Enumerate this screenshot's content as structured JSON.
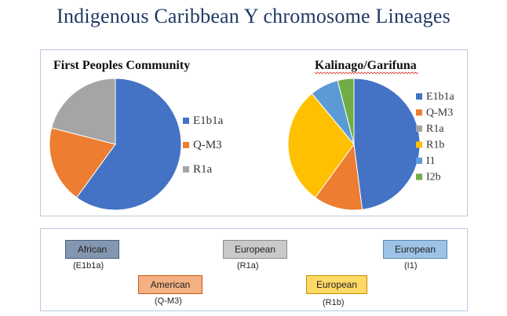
{
  "slide": {
    "title": "Indigenous Caribbean Y chromosome Lineages"
  },
  "chart_data": [
    {
      "type": "pie",
      "title": "First Peoples Community",
      "categories": [
        "E1b1a",
        "Q-M3",
        "R1a"
      ],
      "values": [
        60,
        19,
        21
      ],
      "colors": [
        "#4472c4",
        "#ed7d31",
        "#a5a5a5"
      ],
      "legend": "right"
    },
    {
      "type": "pie",
      "title": "Kalinago/Garifuna",
      "categories": [
        "E1b1a",
        "Q-M3",
        "R1a",
        "R1b",
        "I1",
        "I2b"
      ],
      "values": [
        48,
        12,
        0,
        29,
        7,
        4
      ],
      "colors": [
        "#4472c4",
        "#ed7d31",
        "#a5a5a5",
        "#ffc000",
        "#5b9bd5",
        "#70ad47"
      ],
      "legend": "right"
    }
  ],
  "lineages": [
    {
      "label": "African",
      "code": "(E1b1a)",
      "fill": "#8497b0",
      "border": "#4a5f80"
    },
    {
      "label": "European",
      "code": "(R1a)",
      "fill": "#c9c9c9",
      "border": "#8c8c8c"
    },
    {
      "label": "European",
      "code": "(I1)",
      "fill": "#9dc3e6",
      "border": "#5b86b3"
    },
    {
      "label": "American",
      "code": "(Q-M3)",
      "fill": "#f4b183",
      "border": "#c55a11"
    },
    {
      "label": "European",
      "code": "(R1b)",
      "fill": "#ffd966",
      "border": "#bf9000"
    }
  ]
}
